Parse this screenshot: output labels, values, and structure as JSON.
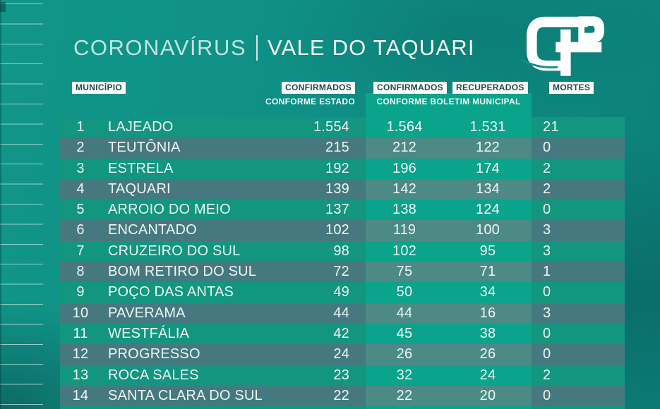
{
  "title": {
    "part1": "CORONAVÍRUS",
    "part2": "VALE DO TAQUARI"
  },
  "logo": {
    "monogram": "GP"
  },
  "table": {
    "headers": {
      "municipio": "MUNICÍPIO",
      "confirmados_estado": "CONFIRMADOS",
      "conforme_estado": "CONFORME ESTADO",
      "confirmados_municipal": "CONFIRMADOS",
      "recuperados": "RECUPERADOS",
      "conforme_boletim": "CONFORME BOLETIM MUNICIPAL",
      "mortes": "MORTES"
    },
    "rows": [
      {
        "rank": "1",
        "name": "LAJEADO",
        "estado": "1.554",
        "municipal": "1.564",
        "recuperados": "1.531",
        "mortes": "21"
      },
      {
        "rank": "2",
        "name": "TEUTÔNIA",
        "estado": "215",
        "municipal": "212",
        "recuperados": "122",
        "mortes": "0"
      },
      {
        "rank": "3",
        "name": "ESTRELA",
        "estado": "192",
        "municipal": "196",
        "recuperados": "174",
        "mortes": "2"
      },
      {
        "rank": "4",
        "name": "TAQUARI",
        "estado": "139",
        "municipal": "142",
        "recuperados": "134",
        "mortes": "2"
      },
      {
        "rank": "5",
        "name": "ARROIO DO MEIO",
        "estado": "137",
        "municipal": "138",
        "recuperados": "124",
        "mortes": "0"
      },
      {
        "rank": "6",
        "name": "ENCANTADO",
        "estado": "102",
        "municipal": "119",
        "recuperados": "100",
        "mortes": "3"
      },
      {
        "rank": "7",
        "name": "CRUZEIRO DO SUL",
        "estado": "98",
        "municipal": "102",
        "recuperados": "95",
        "mortes": "3"
      },
      {
        "rank": "8",
        "name": "BOM RETIRO DO SUL",
        "estado": "72",
        "municipal": "75",
        "recuperados": "71",
        "mortes": "1"
      },
      {
        "rank": "9",
        "name": "POÇO DAS ANTAS",
        "estado": "49",
        "municipal": "50",
        "recuperados": "34",
        "mortes": "0"
      },
      {
        "rank": "10",
        "name": "PAVERAMA",
        "estado": "44",
        "municipal": "44",
        "recuperados": "16",
        "mortes": "3"
      },
      {
        "rank": "11",
        "name": "WESTFÁLIA",
        "estado": "42",
        "municipal": "45",
        "recuperados": "38",
        "mortes": "0"
      },
      {
        "rank": "12",
        "name": "PROGRESSO",
        "estado": "24",
        "municipal": "26",
        "recuperados": "26",
        "mortes": "0"
      },
      {
        "rank": "13",
        "name": "ROCA SALES",
        "estado": "23",
        "municipal": "32",
        "recuperados": "24",
        "mortes": "2"
      },
      {
        "rank": "14",
        "name": "SANTA CLARA DO SUL",
        "estado": "22",
        "municipal": "22",
        "recuperados": "20",
        "mortes": "0"
      }
    ]
  },
  "chart_data": {
    "type": "table",
    "title": "CORONAVÍRUS | VALE DO TAQUARI",
    "columns": [
      "#",
      "MUNICÍPIO",
      "CONFIRMADOS CONFORME ESTADO",
      "CONFIRMADOS CONFORME BOLETIM MUNICIPAL",
      "RECUPERADOS CONFORME BOLETIM MUNICIPAL",
      "MORTES"
    ],
    "rows": [
      [
        1,
        "LAJEADO",
        1554,
        1564,
        1531,
        21
      ],
      [
        2,
        "TEUTÔNIA",
        215,
        212,
        122,
        0
      ],
      [
        3,
        "ESTRELA",
        192,
        196,
        174,
        2
      ],
      [
        4,
        "TAQUARI",
        139,
        142,
        134,
        2
      ],
      [
        5,
        "ARROIO DO MEIO",
        137,
        138,
        124,
        0
      ],
      [
        6,
        "ENCANTADO",
        102,
        119,
        100,
        3
      ],
      [
        7,
        "CRUZEIRO DO SUL",
        98,
        102,
        95,
        3
      ],
      [
        8,
        "BOM RETIRO DO SUL",
        72,
        75,
        71,
        1
      ],
      [
        9,
        "POÇO DAS ANTAS",
        49,
        50,
        34,
        0
      ],
      [
        10,
        "PAVERAMA",
        44,
        44,
        16,
        3
      ],
      [
        11,
        "WESTFÁLIA",
        42,
        45,
        38,
        0
      ],
      [
        12,
        "PROGRESSO",
        24,
        26,
        26,
        0
      ],
      [
        13,
        "ROCA SALES",
        23,
        32,
        24,
        2
      ],
      [
        14,
        "SANTA CLARA DO SUL",
        22,
        22,
        20,
        0
      ]
    ]
  },
  "colors": {
    "background": "#0f9086",
    "row_stripe_green": "#12967f",
    "row_stripe_gray": "#46797f",
    "municipal_band_bright": "#0aa38c",
    "municipal_band_muted": "#4d8a85",
    "chip_background": "#fbfdfd",
    "chip_text": "#1d4a52",
    "row_text": "#ecf7f4"
  }
}
